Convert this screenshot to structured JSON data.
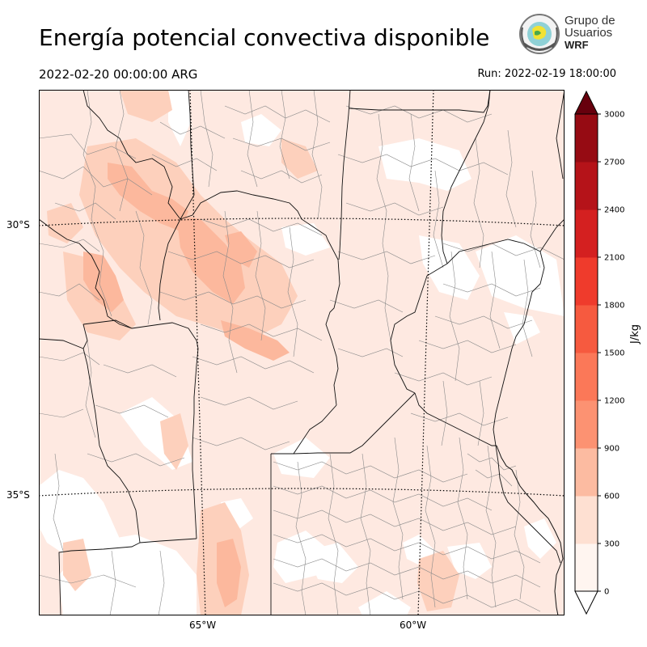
{
  "header": {
    "title": "Energía potencial convectiva disponible",
    "valid_time": "2022-02-20 00:00:00 ARG",
    "run_time": "Run: 2022-02-19 18:00:00"
  },
  "logo": {
    "line1": "Grupo de",
    "line2": "Usuarios",
    "line3": "WRF"
  },
  "map": {
    "variable": "CAPE",
    "lat_labels": [
      "30°S",
      "35°S"
    ],
    "lon_labels": [
      "65°W",
      "60°W"
    ],
    "colors": {
      "land_border": "#000000",
      "dept_border": "#777777",
      "graticule": "#000000"
    }
  },
  "colorbar": {
    "unit": "J/kg",
    "ticks": [
      "0",
      "300",
      "600",
      "900",
      "1200",
      "1500",
      "1800",
      "2100",
      "2400",
      "2700",
      "3000"
    ],
    "colors": [
      "#fff5f0",
      "#fee0d2",
      "#fcbba1",
      "#fc9272",
      "#fb7858",
      "#f65a3f",
      "#ef3b2c",
      "#d42020",
      "#b51319",
      "#960b13",
      "#67000d"
    ]
  }
}
